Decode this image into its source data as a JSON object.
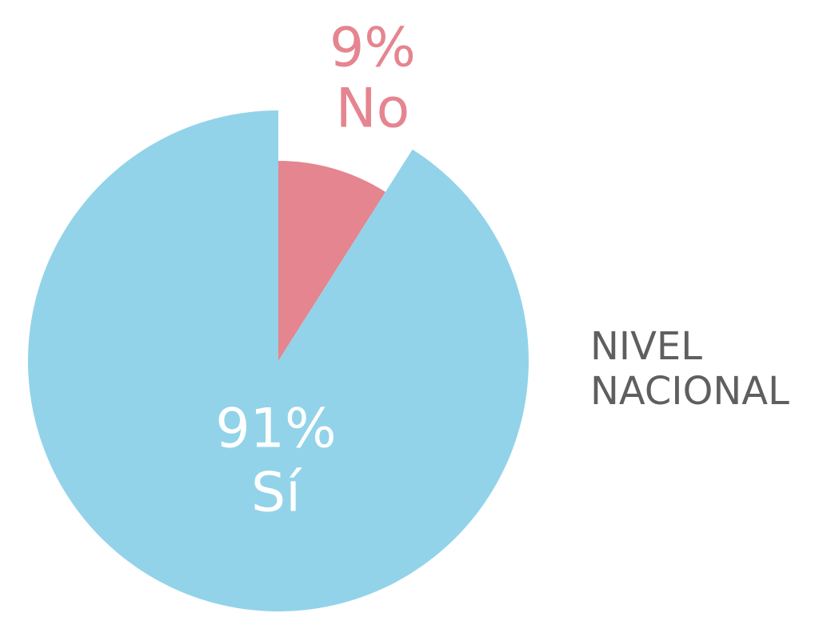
{
  "chart_data": {
    "type": "pie",
    "title": "NIVEL NACIONAL",
    "categories": [
      "Sí",
      "No"
    ],
    "values": [
      91,
      9
    ],
    "value_labels": [
      "91%",
      "9%"
    ],
    "colors": [
      "#92d3e9",
      "#e5858f"
    ]
  }
}
